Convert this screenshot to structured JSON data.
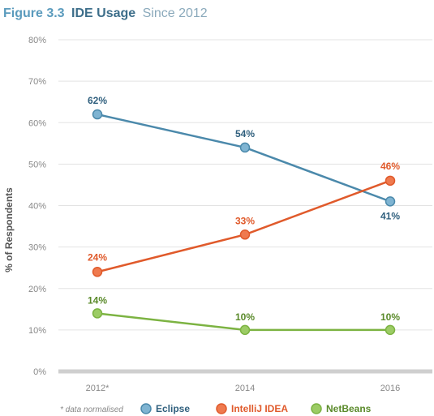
{
  "header": {
    "figure": "Figure 3.3",
    "title": "IDE Usage",
    "subtitle": "Since 2012"
  },
  "chart_data": {
    "type": "line",
    "categories": [
      "2012*",
      "2014",
      "2016"
    ],
    "ylabel": "% of Respondents",
    "ylim": [
      0,
      80
    ],
    "yticks": [
      "0%",
      "10%",
      "20%",
      "30%",
      "40%",
      "50%",
      "60%",
      "70%",
      "80%"
    ],
    "grid": true,
    "legend_position": "bottom",
    "series": [
      {
        "name": "Eclipse",
        "color": "#4b89ab",
        "fill": "#7fb4d2",
        "values": [
          62,
          54,
          41
        ],
        "labels": [
          "62%",
          "54%",
          "41%"
        ]
      },
      {
        "name": "IntelliJ IDEA",
        "color": "#e05a2b",
        "fill": "#ef7a4f",
        "values": [
          24,
          33,
          46
        ],
        "labels": [
          "24%",
          "33%",
          "46%"
        ]
      },
      {
        "name": "NetBeans",
        "color": "#7cb342",
        "fill": "#9ccc65",
        "values": [
          14,
          10,
          10
        ],
        "labels": [
          "14%",
          "10%",
          "10%"
        ]
      }
    ],
    "label_colors": {
      "Eclipse": "#2f5f7d",
      "IntelliJ IDEA": "#e05a2b",
      "NetBeans": "#5a8a2a"
    }
  },
  "footnote": "* data normalised"
}
